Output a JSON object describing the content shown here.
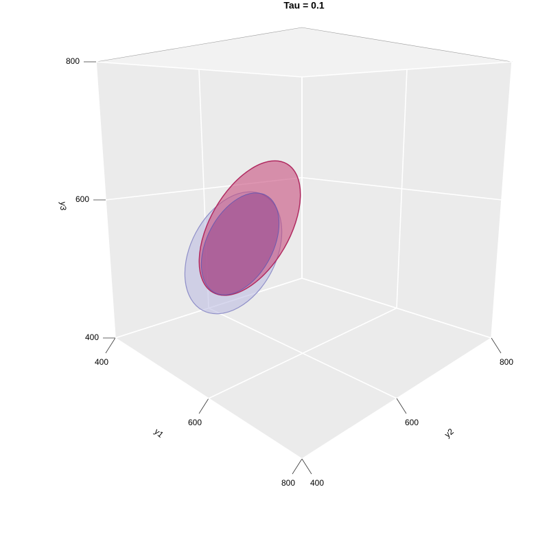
{
  "chart_data": {
    "type": "surface3d",
    "title": "Tau = 0.1",
    "xlabel": "y1",
    "ylabel": "y2",
    "zlabel": "y3",
    "xlim": [
      400,
      800
    ],
    "ylim": [
      400,
      800
    ],
    "zlim": [
      400,
      800
    ],
    "xticks": [
      400,
      600,
      800
    ],
    "yticks": [
      400,
      600,
      800
    ],
    "zticks": [
      400,
      600,
      800
    ],
    "grid": true
  }
}
